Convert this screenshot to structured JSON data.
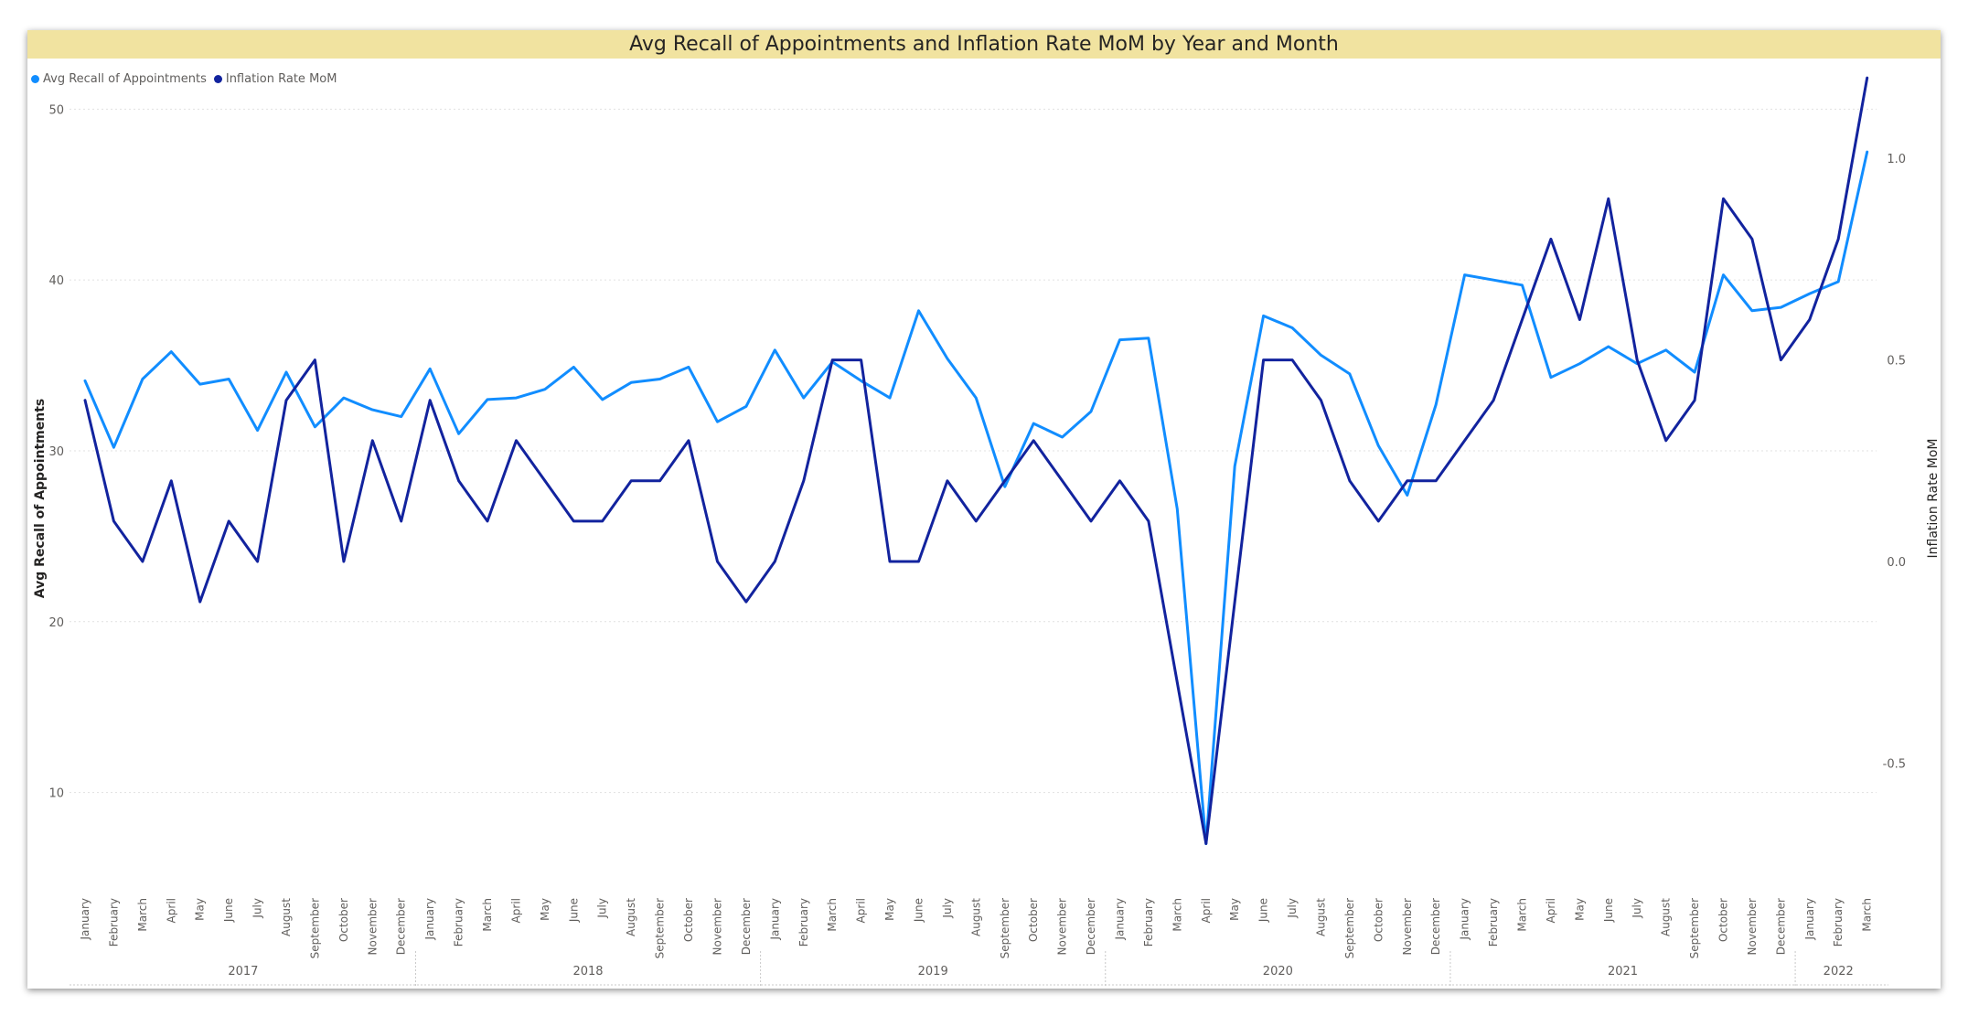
{
  "chart_data": {
    "type": "line",
    "title": "Avg Recall of Appointments and Inflation Rate MoM by Year and Month",
    "x_months": [
      "January",
      "February",
      "March",
      "April",
      "May",
      "June",
      "July",
      "August",
      "September",
      "October",
      "November",
      "December",
      "January",
      "February",
      "March",
      "April",
      "May",
      "June",
      "July",
      "August",
      "September",
      "October",
      "November",
      "December",
      "January",
      "February",
      "March",
      "April",
      "May",
      "June",
      "July",
      "August",
      "September",
      "October",
      "November",
      "December",
      "January",
      "February",
      "March",
      "April",
      "May",
      "June",
      "July",
      "August",
      "September",
      "October",
      "November",
      "December",
      "January",
      "February",
      "March",
      "April",
      "May",
      "June",
      "July",
      "August",
      "September",
      "October",
      "November",
      "December",
      "January",
      "February",
      "March"
    ],
    "years": [
      {
        "label": "2017",
        "count": 12
      },
      {
        "label": "2018",
        "count": 12
      },
      {
        "label": "2019",
        "count": 12
      },
      {
        "label": "2020",
        "count": 12
      },
      {
        "label": "2021",
        "count": 12
      },
      {
        "label": "2022",
        "count": 3
      }
    ],
    "ylabel_left": "Avg Recall of Appointments",
    "ylabel_right": "Inflation Rate MoM",
    "y_left_range": [
      5,
      52
    ],
    "y_left_ticks": [
      10,
      20,
      30,
      40,
      50
    ],
    "y_right_range": [
      -0.785,
      1.207
    ],
    "y_right_ticks": [
      -0.5,
      0.0,
      0.5,
      1.0
    ],
    "grid": true,
    "legend_position": "top-left",
    "series": [
      {
        "name": "Avg Recall of Appointments",
        "axis": "left",
        "color": "#118dff",
        "values": [
          34.1,
          30.2,
          34.2,
          35.8,
          33.9,
          34.2,
          31.2,
          34.6,
          31.4,
          33.1,
          32.4,
          32.0,
          34.8,
          31.0,
          33.0,
          33.1,
          33.6,
          34.9,
          33.0,
          34.0,
          34.2,
          34.9,
          31.7,
          32.6,
          35.9,
          33.1,
          35.2,
          34.1,
          33.1,
          38.2,
          35.4,
          33.1,
          27.9,
          31.6,
          30.8,
          32.3,
          36.5,
          36.6,
          26.6,
          7.0,
          29.1,
          37.9,
          37.2,
          35.6,
          34.5,
          30.3,
          27.4,
          32.7,
          40.3,
          40.0,
          39.7,
          34.3,
          35.1,
          36.1,
          35.1,
          35.9,
          34.6,
          40.3,
          38.2,
          38.4,
          39.2,
          39.9,
          47.5
        ]
      },
      {
        "name": "Inflation Rate MoM",
        "axis": "right",
        "color": "#12239e",
        "values": [
          0.4,
          0.1,
          0.0,
          0.2,
          -0.1,
          0.1,
          0.0,
          0.4,
          0.5,
          0.0,
          0.3,
          0.1,
          0.4,
          0.2,
          0.1,
          0.3,
          0.2,
          0.1,
          0.1,
          0.2,
          0.2,
          0.3,
          0.0,
          -0.1,
          0.0,
          0.2,
          0.5,
          0.5,
          0.0,
          0.0,
          0.2,
          0.1,
          0.2,
          0.3,
          0.2,
          0.1,
          0.2,
          0.1,
          -0.3,
          -0.7,
          -0.1,
          0.5,
          0.5,
          0.4,
          0.2,
          0.1,
          0.2,
          0.2,
          0.3,
          0.4,
          0.6,
          0.8,
          0.6,
          0.9,
          0.5,
          0.3,
          0.4,
          0.9,
          0.8,
          0.5,
          0.6,
          0.8,
          1.2
        ]
      }
    ]
  }
}
